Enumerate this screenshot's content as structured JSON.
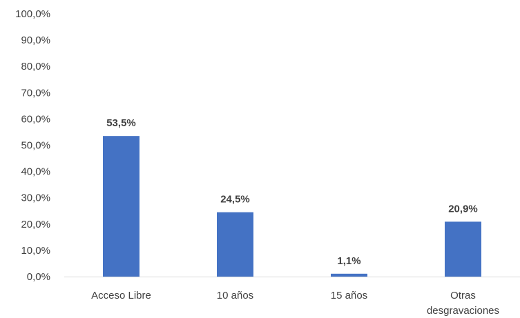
{
  "chart_data": {
    "type": "bar",
    "categories": [
      [
        "Acceso Libre"
      ],
      [
        "10 años"
      ],
      [
        "15 años"
      ],
      [
        "Otras",
        "desgravaciones"
      ]
    ],
    "values": [
      53.5,
      24.5,
      1.1,
      20.9
    ],
    "data_labels": [
      "53,5%",
      "24,5%",
      "1,1%",
      "20,9%"
    ],
    "y_ticks": [
      "0,0%",
      "10,0%",
      "20,0%",
      "30,0%",
      "40,0%",
      "50,0%",
      "60,0%",
      "70,0%",
      "80,0%",
      "90,0%",
      "100,0%"
    ],
    "ylim": [
      0,
      100
    ],
    "grid": false,
    "legend": "none",
    "title": "",
    "xlabel": "",
    "ylabel": "",
    "bar_color": "#4472C4",
    "axis_color": "#D9D9D9",
    "text_color": "#404040"
  }
}
